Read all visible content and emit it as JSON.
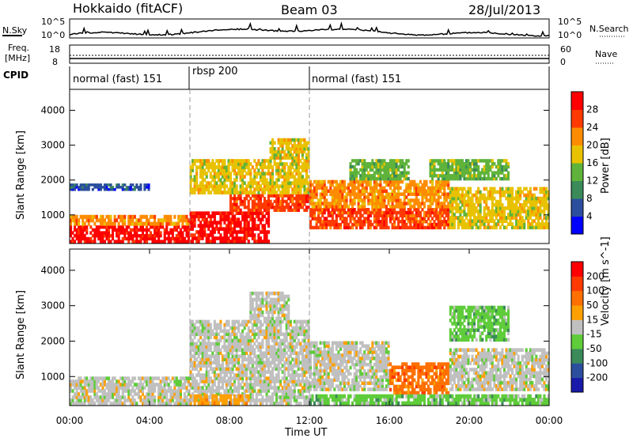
{
  "header": {
    "station": "Hokkaido (fitACF)",
    "beam": "Beam 03",
    "date": "28/Jul/2013"
  },
  "top_panels": {
    "nsky_label": "N.Sky",
    "nsearch_label": "N.Search",
    "nsky_ticks": [
      "10^5",
      "10^0"
    ],
    "nsearch_ticks": [
      "10^5",
      "10^0"
    ],
    "freq_label_1": "Freq.",
    "freq_label_2": "[MHz]",
    "freq_ticks": [
      "18",
      "8"
    ],
    "nave_label": "Nave",
    "nave_ticks": [
      "60",
      "0"
    ],
    "cpid_label": "CPID",
    "cpid_segments": [
      {
        "name": "normal (fast) 151",
        "start_h": 0,
        "end_h": 6
      },
      {
        "name": "rbsp 200",
        "start_h": 6,
        "end_h": 12
      },
      {
        "name": "normal (fast) 151",
        "start_h": 12,
        "end_h": 24
      }
    ]
  },
  "x_axis": {
    "label": "Time UT",
    "ticks": [
      "00:00",
      "04:00",
      "08:00",
      "12:00",
      "16:00",
      "20:00",
      "00:00"
    ]
  },
  "chart_data": [
    {
      "type": "heatmap",
      "ylabel": "Slant Range [km]",
      "xlabel": "Time UT",
      "x_range_hours": [
        0,
        24
      ],
      "ylim": [
        180,
        4600
      ],
      "yticks": [
        1000,
        2000,
        3000,
        4000
      ],
      "colorbar_label": "Power [dB]",
      "colorbar_ticks": [
        4,
        8,
        12,
        16,
        20,
        24,
        28
      ],
      "colors": [
        "#0000ff",
        "#2b4f9e",
        "#3a8a5a",
        "#5fb33a",
        "#e8c200",
        "#ff8c00",
        "#ff3a00",
        "#ff0000"
      ],
      "regions": [
        {
          "t0": 0,
          "t1": 6,
          "r0": 200,
          "r1": 700,
          "level": 7
        },
        {
          "t0": 0,
          "t1": 6,
          "r0": 700,
          "r1": 1000,
          "level": 5
        },
        {
          "t0": 6,
          "t1": 10,
          "r0": 200,
          "r1": 1100,
          "level": 7
        },
        {
          "t0": 8,
          "t1": 12,
          "r0": 1100,
          "r1": 1600,
          "level": 6
        },
        {
          "t0": 6,
          "t1": 12,
          "r0": 1600,
          "r1": 2600,
          "level": 4
        },
        {
          "t0": 10,
          "t1": 12,
          "r0": 2600,
          "r1": 3200,
          "level": 4
        },
        {
          "t0": 12,
          "t1": 19,
          "r0": 600,
          "r1": 1200,
          "level": 6
        },
        {
          "t0": 12,
          "t1": 19,
          "r0": 1200,
          "r1": 2000,
          "level": 5
        },
        {
          "t0": 14,
          "t1": 17,
          "r0": 2000,
          "r1": 2600,
          "level": 3
        },
        {
          "t0": 19,
          "t1": 24,
          "r0": 600,
          "r1": 1800,
          "level": 4
        },
        {
          "t0": 18,
          "t1": 22,
          "r0": 2000,
          "r1": 2600,
          "level": 3
        },
        {
          "t0": 0,
          "t1": 4,
          "r0": 1700,
          "r1": 1900,
          "level": 1
        }
      ]
    },
    {
      "type": "heatmap",
      "ylabel": "Slant Range [km]",
      "xlabel": "Time UT",
      "x_range_hours": [
        0,
        24
      ],
      "ylim": [
        180,
        4600
      ],
      "yticks": [
        1000,
        2000,
        3000,
        4000
      ],
      "colorbar_label": "Velocity [m s^-1]",
      "colorbar_ticks": [
        200,
        100,
        50,
        15,
        -15,
        -50,
        -100,
        -200
      ],
      "colors": [
        "#1a1aaa",
        "#2b4f9e",
        "#3a8a5a",
        "#5fcc3a",
        "#c0c0c0",
        "#ffa000",
        "#ff7000",
        "#ff3a00",
        "#ff0000"
      ],
      "regions": [
        {
          "t0": 0,
          "t1": 6,
          "r0": 200,
          "r1": 1000,
          "level": 4
        },
        {
          "t0": 6,
          "t1": 12,
          "r0": 200,
          "r1": 2600,
          "level": 4
        },
        {
          "t0": 9,
          "t1": 11,
          "r0": 2600,
          "r1": 3400,
          "level": 4
        },
        {
          "t0": 12,
          "t1": 16,
          "r0": 600,
          "r1": 2000,
          "level": 4
        },
        {
          "t0": 16,
          "t1": 19,
          "r0": 500,
          "r1": 1400,
          "level": 6
        },
        {
          "t0": 19,
          "t1": 24,
          "r0": 600,
          "r1": 1800,
          "level": 4
        },
        {
          "t0": 6,
          "t1": 9,
          "r0": 200,
          "r1": 500,
          "level": 5
        },
        {
          "t0": 12,
          "t1": 24,
          "r0": 200,
          "r1": 500,
          "level": 3
        },
        {
          "t0": 19,
          "t1": 22,
          "r0": 2000,
          "r1": 3000,
          "level": 3
        }
      ]
    }
  ]
}
